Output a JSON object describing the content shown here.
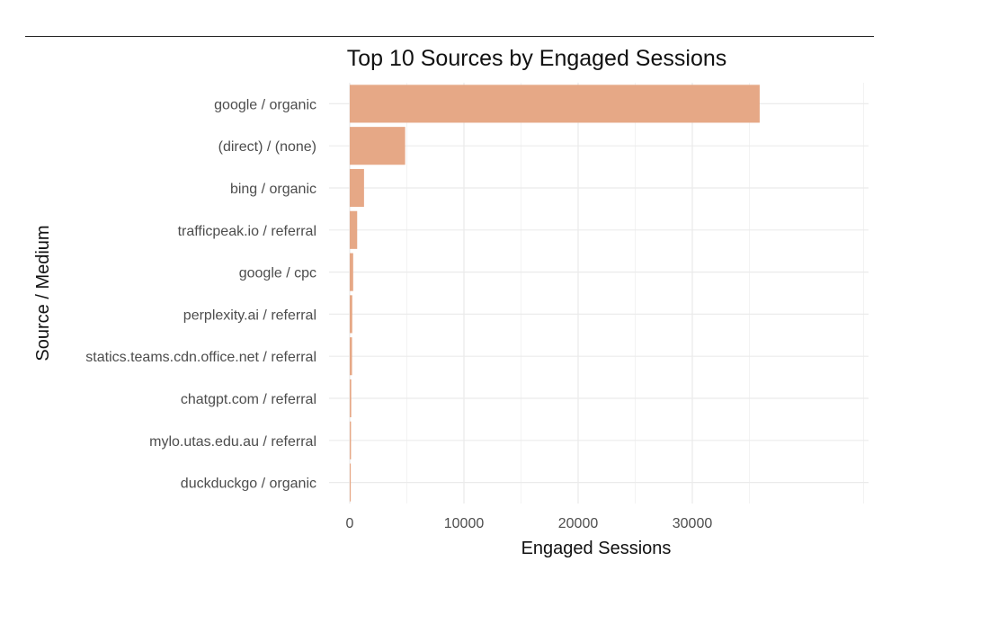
{
  "chart_data": {
    "type": "bar",
    "orientation": "horizontal",
    "title": "Top 10 Sources by Engaged Sessions",
    "xlabel": "Engaged Sessions",
    "ylabel": "Source / Medium",
    "categories": [
      "google / organic",
      "(direct) / (none)",
      "bing / organic",
      "trafficpeak.io / referral",
      "google / cpc",
      "perplexity.ai / referral",
      "statics.teams.cdn.office.net / referral",
      "chatgpt.com / referral",
      "mylo.utas.edu.au / referral",
      "duckduckgo / organic"
    ],
    "values": [
      35900,
      4850,
      1250,
      650,
      300,
      220,
      200,
      130,
      110,
      90
    ],
    "xlim": [
      0,
      38000
    ],
    "xticks": [
      0,
      10000,
      20000,
      30000
    ],
    "xtick_labels": [
      "0",
      "10000",
      "20000",
      "30000"
    ],
    "grid": true,
    "bar_color": "#e6a886"
  }
}
